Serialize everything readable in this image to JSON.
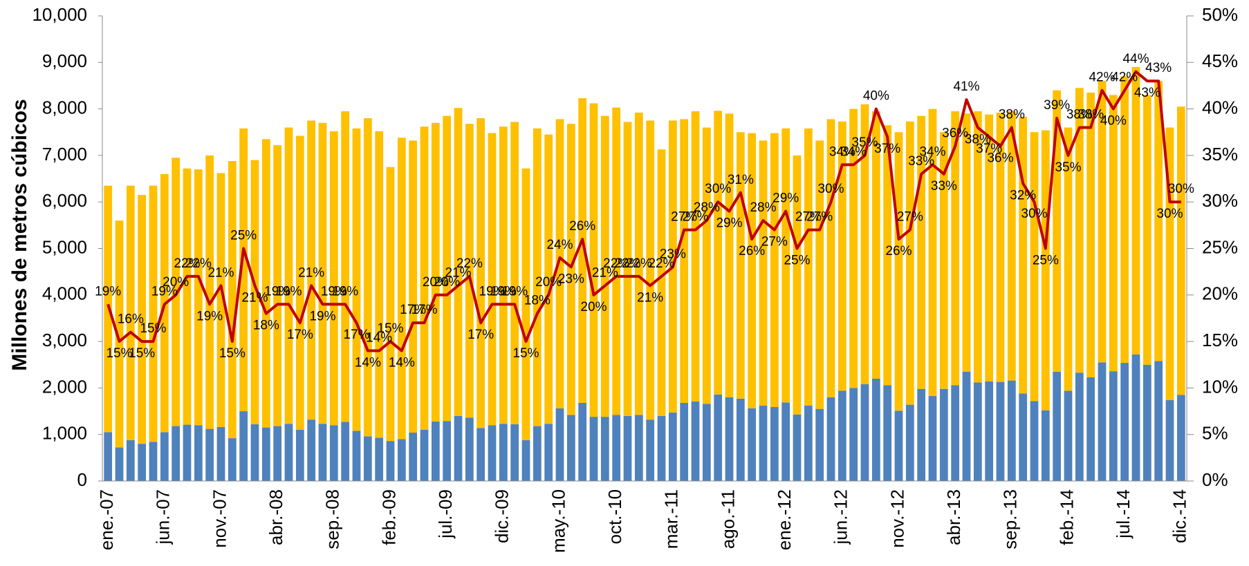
{
  "chart_data": {
    "type": "bar",
    "stacked": true,
    "y_label": "Millones de metros cúbicos",
    "categories": [
      "ene.-07",
      null,
      null,
      null,
      null,
      "jun.-07",
      null,
      null,
      null,
      null,
      "nov.-07",
      null,
      null,
      null,
      null,
      "abr.-08",
      null,
      null,
      null,
      null,
      "sep.-08",
      null,
      null,
      null,
      null,
      "feb.-09",
      null,
      null,
      null,
      null,
      "jul.-09",
      null,
      null,
      null,
      null,
      "dic.-09",
      null,
      null,
      null,
      null,
      "may.-10",
      null,
      null,
      null,
      null,
      "oct.-10",
      null,
      null,
      null,
      null,
      "mar.-11",
      null,
      null,
      null,
      null,
      "ago.-11",
      null,
      null,
      null,
      null,
      "ene.-12",
      null,
      null,
      null,
      null,
      "jun.-12",
      null,
      null,
      null,
      null,
      "nov.-12",
      null,
      null,
      null,
      null,
      "abr.-13",
      null,
      null,
      null,
      null,
      "sep.-13",
      null,
      null,
      null,
      null,
      "feb.-14",
      null,
      null,
      null,
      null,
      "jul.-14",
      null,
      null,
      null,
      null,
      "dic.-14"
    ],
    "series": [
      {
        "color": "#4f81bd",
        "values": [
          1050,
          720,
          880,
          800,
          840,
          1050,
          1180,
          1210,
          1200,
          1120,
          1160,
          920,
          1500,
          1220,
          1150,
          1180,
          1230,
          1100,
          1320,
          1230,
          1200,
          1270,
          1080,
          960,
          930,
          860,
          900,
          1040,
          1100,
          1280,
          1290,
          1400,
          1360,
          1140,
          1200,
          1230,
          1220,
          880,
          1180,
          1230,
          1560,
          1420,
          1680,
          1380,
          1380,
          1420,
          1400,
          1420,
          1320,
          1400,
          1470,
          1680,
          1710,
          1660,
          1860,
          1800,
          1770,
          1560,
          1620,
          1590,
          1690,
          1430,
          1620,
          1550,
          1800,
          1940,
          2000,
          2080,
          2200,
          2060,
          1510,
          1640,
          1980,
          1830,
          1980,
          2060,
          2350,
          2120,
          2140,
          2130,
          2160,
          1880,
          1720,
          1520,
          2350,
          1940,
          2330,
          2230,
          2550,
          2360,
          2540,
          2720,
          2500,
          2580,
          1740,
          1850
        ]
      },
      {
        "color": "#ffc000",
        "values": [
          5300,
          4880,
          5470,
          5350,
          5510,
          5550,
          5770,
          5510,
          5500,
          5880,
          5460,
          5960,
          6080,
          5680,
          6200,
          6040,
          6370,
          6320,
          6430,
          6470,
          6320,
          6680,
          6500,
          6840,
          6590,
          5890,
          6480,
          6280,
          6520,
          6420,
          6560,
          6620,
          6320,
          6660,
          6280,
          6390,
          6500,
          5840,
          6400,
          6220,
          6220,
          6260,
          6550,
          6740,
          6470,
          6610,
          6320,
          6500,
          6430,
          5730,
          6280,
          6100,
          6240,
          5940,
          6100,
          6100,
          5730,
          5920,
          5700,
          5890,
          5890,
          5570,
          5960,
          5770,
          5980,
          5790,
          6000,
          6020,
          5750,
          5590,
          5990,
          6090,
          5870,
          6170,
          5520,
          5890,
          5550,
          5830,
          5740,
          5790,
          5790,
          5950,
          5780,
          6020,
          6050,
          5660,
          6120,
          6120,
          6050,
          5940,
          6160,
          6180,
          5800,
          6020,
          5860,
          6200
        ]
      },
      {
        "type": "line",
        "axis": "y2",
        "color": "#c00000",
        "values": [
          19,
          15,
          16,
          15,
          15,
          19,
          20,
          22,
          22,
          19,
          21,
          15,
          25,
          21,
          18,
          19,
          19,
          17,
          21,
          19,
          19,
          19,
          17,
          14,
          14,
          15,
          14,
          17,
          17,
          20,
          20,
          21,
          22,
          17,
          19,
          19,
          19,
          15,
          18,
          20,
          24,
          23,
          26,
          20,
          21,
          22,
          22,
          22,
          21,
          22,
          23,
          27,
          27,
          28,
          30,
          29,
          31,
          26,
          28,
          27,
          29,
          25,
          27,
          27,
          30,
          34,
          34,
          35,
          40,
          37,
          26,
          27,
          33,
          34,
          33,
          36,
          41,
          38,
          37,
          36,
          38,
          32,
          30,
          25,
          39,
          35,
          38,
          38,
          42,
          40,
          42,
          44,
          43,
          43,
          30,
          30
        ],
        "value_labels": [
          "19%",
          "15%",
          "16%",
          "15%",
          "15%",
          "19%",
          "20%",
          "22%",
          "22%",
          "19%",
          "21%",
          "15%",
          "25%",
          "21%",
          "18%",
          "19%",
          "19%",
          "17%",
          "21%",
          "19%",
          "19%",
          "19%",
          "17%",
          "14%",
          "14%",
          "15%",
          "14%",
          "17%",
          "17%",
          "20%",
          "20%",
          "21%",
          "22%",
          "17%",
          "19%",
          "19%",
          "19%",
          "15%",
          "18%",
          "20%",
          "24%",
          "23%",
          "26%",
          "20%",
          "21%",
          "22%",
          "22%",
          "22%",
          "21%",
          "22%",
          "23%",
          "27%",
          "27%",
          "28%",
          "30%",
          "29%",
          "31%",
          "26%",
          "28%",
          "27%",
          "29%",
          "25%",
          "27%",
          "27%",
          "30%",
          "34%",
          "34%",
          "35%",
          "40%",
          "37%",
          "26%",
          "27%",
          "33%",
          "34%",
          "33%",
          "36%",
          "41%",
          "38%",
          "37%",
          "36%",
          "38%",
          "32%",
          "30%",
          "25%",
          "39%",
          "35%",
          "38%",
          "38%",
          "42%",
          "40%",
          "42%",
          "44%",
          "43%",
          "43%",
          "30%",
          "30%"
        ]
      }
    ],
    "ylim": [
      0,
      10000
    ],
    "yticks": [
      0,
      {
        "value": 1000,
        "label": "1,000"
      },
      {
        "value": 2000,
        "label": "2,000"
      },
      {
        "value": 3000,
        "label": "3,000"
      },
      {
        "value": 4000,
        "label": "4,000"
      },
      {
        "value": 5000,
        "label": "5,000"
      },
      {
        "value": 6000,
        "label": "6,000"
      },
      {
        "value": 7000,
        "label": "7,000"
      },
      {
        "value": 8000,
        "label": "8,000"
      },
      {
        "value": 9000,
        "label": "9,000"
      },
      {
        "value": 10000,
        "label": "10,000"
      }
    ],
    "y2lim": [
      0,
      50
    ],
    "y2ticks": [
      {
        "value": 0,
        "label": "0%"
      },
      {
        "value": 5,
        "label": "5%"
      },
      {
        "value": 10,
        "label": "10%"
      },
      {
        "value": 15,
        "label": "15%"
      },
      {
        "value": 20,
        "label": "20%"
      },
      {
        "value": 25,
        "label": "25%"
      },
      {
        "value": 30,
        "label": "30%"
      },
      {
        "value": 35,
        "label": "35%"
      },
      {
        "value": 40,
        "label": "40%"
      },
      {
        "value": 45,
        "label": "45%"
      },
      {
        "value": 50,
        "label": "50%"
      }
    ],
    "grid": false
  }
}
